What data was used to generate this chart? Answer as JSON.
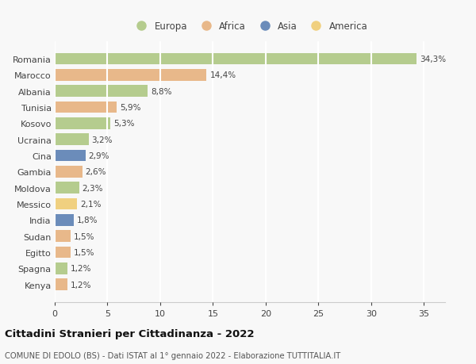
{
  "countries": [
    "Romania",
    "Marocco",
    "Albania",
    "Tunisia",
    "Kosovo",
    "Ucraina",
    "Cina",
    "Gambia",
    "Moldova",
    "Messico",
    "India",
    "Sudan",
    "Egitto",
    "Spagna",
    "Kenya"
  ],
  "values": [
    34.3,
    14.4,
    8.8,
    5.9,
    5.3,
    3.2,
    2.9,
    2.6,
    2.3,
    2.1,
    1.8,
    1.5,
    1.5,
    1.2,
    1.2
  ],
  "labels": [
    "34,3%",
    "14,4%",
    "8,8%",
    "5,9%",
    "5,3%",
    "3,2%",
    "2,9%",
    "2,6%",
    "2,3%",
    "2,1%",
    "1,8%",
    "1,5%",
    "1,5%",
    "1,2%",
    "1,2%"
  ],
  "continents": [
    "Europa",
    "Africa",
    "Europa",
    "Africa",
    "Europa",
    "Europa",
    "Asia",
    "Africa",
    "Europa",
    "America",
    "Asia",
    "Africa",
    "Africa",
    "Europa",
    "Africa"
  ],
  "colors": {
    "Europa": "#b5cc8e",
    "Africa": "#e8b88a",
    "Asia": "#6b8cba",
    "America": "#f0d080"
  },
  "legend_order": [
    "Europa",
    "Africa",
    "Asia",
    "America"
  ],
  "legend_colors": [
    "#b5cc8e",
    "#e8b88a",
    "#6b8cba",
    "#f0d080"
  ],
  "title": "Cittadini Stranieri per Cittadinanza - 2022",
  "subtitle": "COMUNE DI EDOLO (BS) - Dati ISTAT al 1° gennaio 2022 - Elaborazione TUTTITALIA.IT",
  "xlim": [
    0,
    37
  ],
  "xticks": [
    0,
    5,
    10,
    15,
    20,
    25,
    30,
    35
  ],
  "background_color": "#f8f8f8",
  "grid_color": "#ffffff",
  "bar_height": 0.72
}
